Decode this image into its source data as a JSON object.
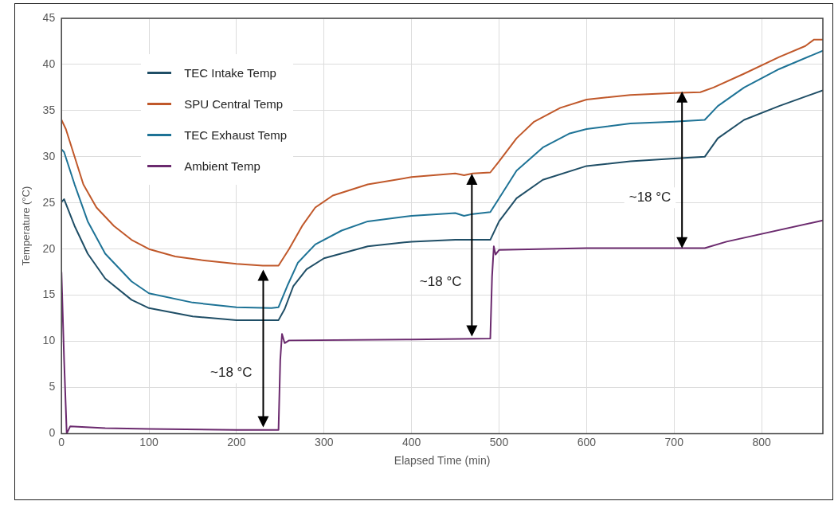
{
  "chart_data": {
    "type": "line",
    "xlabel": "Elapsed Time (min)",
    "ylabel": "Temperature (°C)",
    "xlim": [
      0,
      870
    ],
    "xticks": [
      0,
      100,
      200,
      300,
      400,
      500,
      600,
      700,
      800
    ],
    "ylim": [
      0,
      45
    ],
    "yticks": [
      0,
      5,
      10,
      15,
      20,
      25,
      30,
      35,
      40,
      45
    ],
    "grid": true,
    "legend": "top left",
    "marker": "none",
    "line_style": "solid",
    "annotations": [
      "~18 °C",
      "~18 °C",
      "~18 °C"
    ],
    "series": [
      {
        "name": "TEC Intake Temp",
        "color": "#1f4e66",
        "x": [
          0,
          3,
          15,
          30,
          50,
          80,
          100,
          150,
          200,
          248,
          255,
          265,
          280,
          300,
          350,
          400,
          450,
          490,
          500,
          520,
          550,
          600,
          650,
          700,
          735,
          750,
          780,
          820,
          870
        ],
        "values": [
          25.1,
          25.4,
          22.5,
          19.5,
          16.8,
          14.5,
          13.6,
          12.7,
          12.3,
          12.3,
          13.5,
          16,
          17.8,
          19,
          20.3,
          20.8,
          21,
          21,
          23,
          25.5,
          27.5,
          29,
          29.5,
          29.8,
          30,
          32,
          34,
          35.5,
          37.2
        ]
      },
      {
        "name": "SPU Central Temp",
        "color": "#c0582a",
        "x": [
          0,
          5,
          15,
          25,
          40,
          60,
          80,
          100,
          130,
          160,
          200,
          230,
          248,
          260,
          275,
          290,
          310,
          350,
          400,
          450,
          460,
          470,
          490,
          500,
          520,
          540,
          570,
          600,
          650,
          700,
          730,
          745,
          780,
          820,
          850,
          860,
          870
        ],
        "values": [
          34,
          33,
          30,
          27,
          24.5,
          22.5,
          21,
          20,
          19.2,
          18.8,
          18.4,
          18.2,
          18.2,
          20,
          22.5,
          24.5,
          25.8,
          27,
          27.8,
          28.2,
          28,
          28.2,
          28.3,
          29.5,
          32,
          33.8,
          35.3,
          36.2,
          36.7,
          36.9,
          37,
          37.5,
          39,
          40.8,
          42,
          42.7,
          42.7
        ]
      },
      {
        "name": "TEC Exhaust Temp",
        "color": "#1e7396",
        "x": [
          0,
          3,
          15,
          30,
          50,
          80,
          100,
          150,
          200,
          240,
          248,
          258,
          270,
          290,
          320,
          350,
          400,
          450,
          460,
          470,
          490,
          500,
          520,
          550,
          580,
          600,
          650,
          700,
          735,
          750,
          780,
          820,
          870
        ],
        "values": [
          30.8,
          30.5,
          27,
          23,
          19.5,
          16.5,
          15.2,
          14.2,
          13.7,
          13.6,
          13.7,
          16,
          18.5,
          20.5,
          22,
          23,
          23.6,
          23.9,
          23.6,
          23.8,
          24,
          25.5,
          28.5,
          31,
          32.5,
          33,
          33.6,
          33.8,
          34,
          35.5,
          37.5,
          39.5,
          41.5
        ]
      },
      {
        "name": "Ambient Temp",
        "color": "#6b2a6e",
        "x": [
          0,
          3,
          6,
          10,
          50,
          100,
          200,
          248,
          250,
          252,
          255,
          260,
          400,
          490,
          492,
          494,
          496,
          500,
          600,
          735,
          760,
          870
        ],
        "values": [
          17.5,
          8,
          0,
          0.8,
          0.6,
          0.5,
          0.4,
          0.4,
          8,
          10.8,
          9.8,
          10.1,
          10.2,
          10.3,
          17,
          20.3,
          19.4,
          19.9,
          20.1,
          20.1,
          20.8,
          23.1
        ]
      }
    ]
  }
}
